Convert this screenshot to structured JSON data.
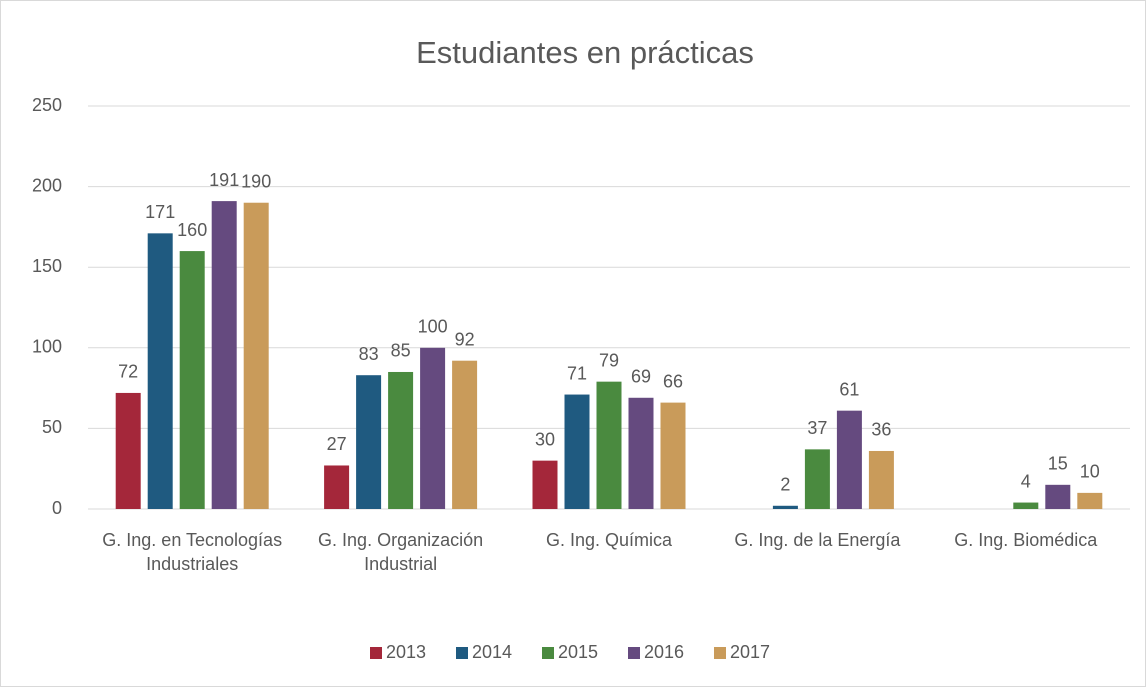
{
  "chart_data": {
    "type": "bar",
    "title": "Estudiantes en prácticas",
    "categories": [
      "G. Ing. en Tecnologías Industriales",
      "G. Ing. Organización Industrial",
      "G. Ing. Química",
      "G. Ing. de la Energía",
      "G. Ing. Biomédica"
    ],
    "series": [
      {
        "name": "2013",
        "color": "#a4273a",
        "values": [
          72,
          27,
          30,
          null,
          null
        ]
      },
      {
        "name": "2014",
        "color": "#1f5a80",
        "values": [
          171,
          83,
          71,
          2,
          null
        ]
      },
      {
        "name": "2015",
        "color": "#4a8a3f",
        "values": [
          160,
          85,
          79,
          37,
          4
        ]
      },
      {
        "name": "2016",
        "color": "#654a7f",
        "values": [
          191,
          100,
          69,
          61,
          15
        ]
      },
      {
        "name": "2017",
        "color": "#c99b5a",
        "values": [
          190,
          92,
          66,
          36,
          10
        ]
      }
    ],
    "ylim": [
      0,
      250
    ],
    "yticks": [
      0,
      50,
      100,
      150,
      200,
      250
    ],
    "grid": true,
    "legend": "bottom"
  }
}
